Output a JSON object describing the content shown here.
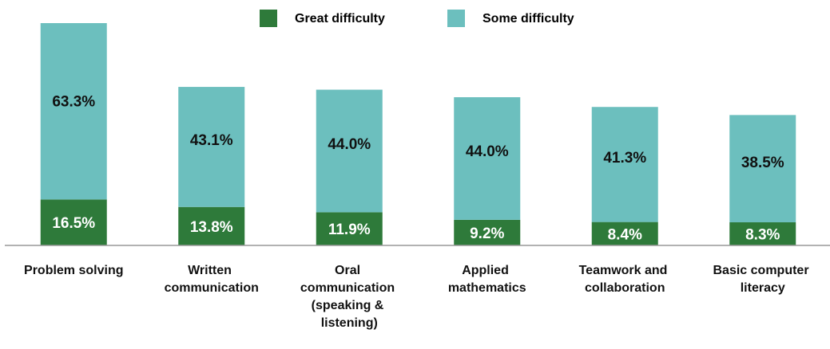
{
  "chart_data": {
    "type": "stacked_bar",
    "categories": [
      "Problem solving",
      "Written communication",
      "Oral communication (speaking & listening)",
      "Applied mathematics",
      "Teamwork and collaboration",
      "Basic computer literacy"
    ],
    "series": [
      {
        "name": "Great difficulty",
        "color": "#2e7a3a",
        "values": [
          16.5,
          13.8,
          11.9,
          9.2,
          8.4,
          8.3
        ],
        "value_labels": [
          "16.5%",
          "13.8%",
          "11.9%",
          "9.2%",
          "8.4%",
          "8.3%"
        ]
      },
      {
        "name": "Some difficulty",
        "color": "#6cbfbe",
        "values": [
          63.3,
          43.1,
          44.0,
          44.0,
          41.3,
          38.5
        ],
        "value_labels": [
          "63.3%",
          "43.1%",
          "44.0%",
          "44.0%",
          "41.3%",
          "38.5%"
        ]
      }
    ],
    "legend": "top"
  }
}
